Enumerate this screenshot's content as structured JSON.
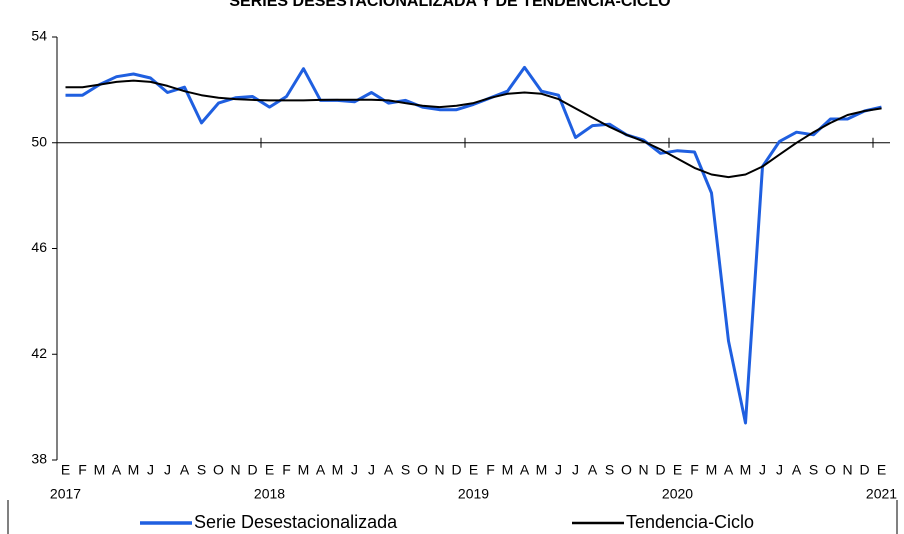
{
  "chart_data": {
    "type": "line",
    "title": "SERIES DESESTACIONALIZADA Y DE TENDENCIA-CICLO",
    "categories": [
      "E",
      "F",
      "M",
      "A",
      "M",
      "J",
      "J",
      "A",
      "S",
      "O",
      "N",
      "D",
      "E",
      "F",
      "M",
      "A",
      "M",
      "J",
      "J",
      "A",
      "S",
      "O",
      "N",
      "D",
      "E",
      "F",
      "M",
      "A",
      "M",
      "J",
      "J",
      "A",
      "S",
      "O",
      "N",
      "D",
      "E",
      "F",
      "M",
      "A",
      "M",
      "J",
      "J",
      "A",
      "S",
      "O",
      "N",
      "D",
      "E"
    ],
    "year_labels": [
      "2017",
      null,
      null,
      null,
      null,
      null,
      null,
      null,
      null,
      null,
      null,
      null,
      "2018",
      null,
      null,
      null,
      null,
      null,
      null,
      null,
      null,
      null,
      null,
      null,
      "2019",
      null,
      null,
      null,
      null,
      null,
      null,
      null,
      null,
      null,
      null,
      null,
      "2020",
      null,
      null,
      null,
      null,
      null,
      null,
      null,
      null,
      null,
      null,
      null,
      "2021"
    ],
    "series": [
      {
        "name": "Serie Desestacionalizada",
        "color": "#1f5fe0",
        "values": [
          51.8,
          51.8,
          52.2,
          52.5,
          52.6,
          52.45,
          51.9,
          52.1,
          50.75,
          51.5,
          51.7,
          51.75,
          51.35,
          51.75,
          52.8,
          51.6,
          51.6,
          51.55,
          51.9,
          51.5,
          51.6,
          51.35,
          51.25,
          51.25,
          51.45,
          51.7,
          51.95,
          52.85,
          51.95,
          51.8,
          50.2,
          50.65,
          50.7,
          50.3,
          50.1,
          49.6,
          49.7,
          49.65,
          48.1,
          42.5,
          39.4,
          49.1,
          50.05,
          50.4,
          50.3,
          50.9,
          50.9,
          51.2,
          51.35
        ]
      },
      {
        "name": "Tendencia-Ciclo",
        "color": "#000000",
        "values": [
          52.1,
          52.1,
          52.2,
          52.3,
          52.35,
          52.3,
          52.15,
          51.95,
          51.8,
          51.7,
          51.65,
          51.62,
          51.6,
          51.6,
          51.6,
          51.62,
          51.63,
          51.63,
          51.63,
          51.6,
          51.5,
          51.4,
          51.35,
          51.4,
          51.5,
          51.7,
          51.85,
          51.9,
          51.85,
          51.65,
          51.3,
          50.95,
          50.6,
          50.3,
          50.05,
          49.75,
          49.4,
          49.05,
          48.8,
          48.7,
          48.8,
          49.1,
          49.55,
          50.0,
          50.4,
          50.75,
          51.05,
          51.2,
          51.3
        ]
      }
    ],
    "ylim": [
      38,
      54
    ],
    "yticks": [
      38,
      42,
      46,
      50,
      54
    ],
    "category_axis_at": 50,
    "grid": false,
    "legend": "bottom"
  }
}
